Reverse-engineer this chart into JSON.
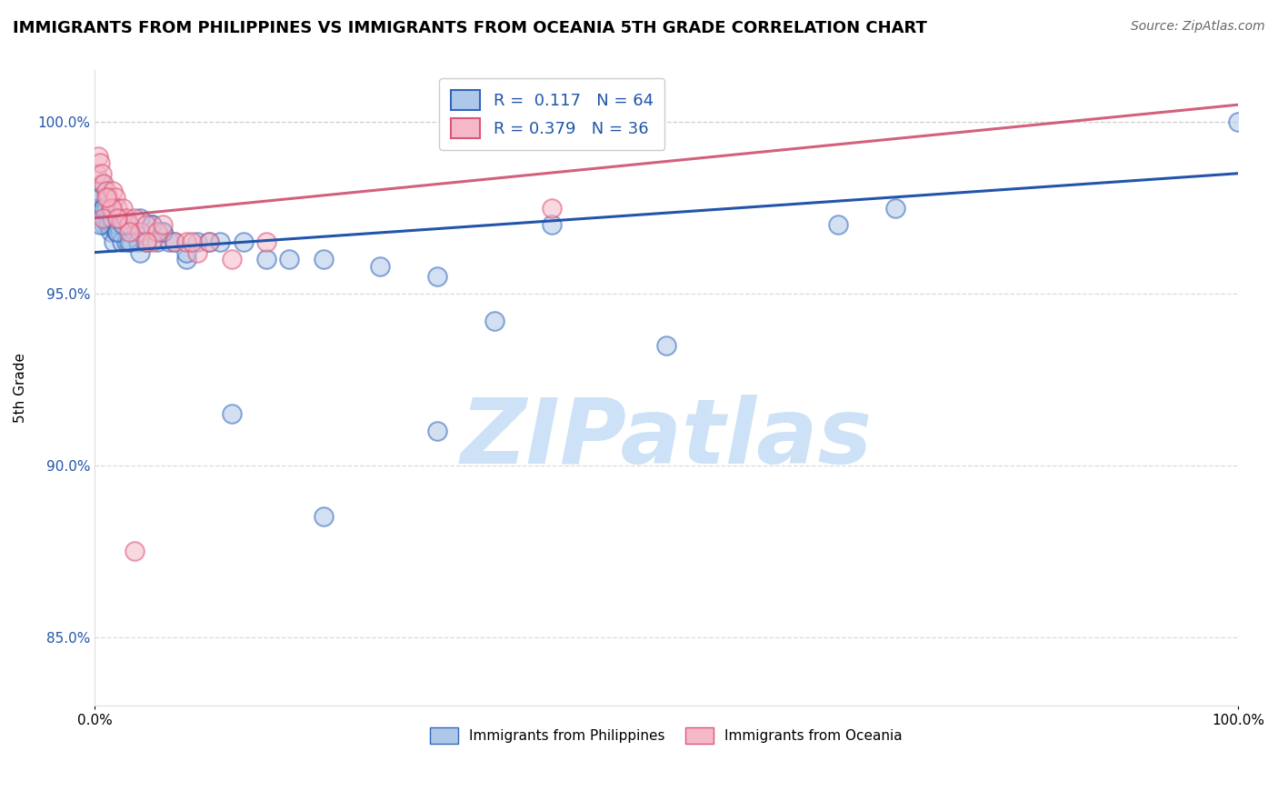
{
  "title": "IMMIGRANTS FROM PHILIPPINES VS IMMIGRANTS FROM OCEANIA 5TH GRADE CORRELATION CHART",
  "source": "Source: ZipAtlas.com",
  "ylabel": "5th Grade",
  "xlim": [
    0.0,
    100.0
  ],
  "ylim": [
    83.0,
    101.5
  ],
  "yticks": [
    85.0,
    90.0,
    95.0,
    100.0
  ],
  "R_blue": 0.117,
  "N_blue": 64,
  "R_pink": 0.379,
  "N_pink": 36,
  "blue_color": "#adc8e8",
  "blue_edge_color": "#3366bb",
  "blue_line_color": "#2255aa",
  "pink_color": "#f5b8c8",
  "pink_edge_color": "#dd5577",
  "pink_line_color": "#cc4466",
  "blue_scatter_x": [
    0.2,
    0.3,
    0.4,
    0.5,
    0.6,
    0.7,
    0.8,
    0.9,
    1.0,
    1.1,
    1.2,
    1.3,
    1.4,
    1.5,
    1.6,
    1.7,
    1.8,
    1.9,
    2.0,
    2.1,
    2.2,
    2.4,
    2.6,
    2.8,
    3.0,
    3.2,
    3.5,
    3.8,
    4.0,
    4.5,
    5.0,
    5.5,
    6.0,
    6.5,
    7.0,
    8.0,
    9.0,
    10.0,
    11.0,
    13.0,
    15.0,
    17.0,
    20.0,
    25.0,
    30.0,
    35.0,
    50.0,
    65.0,
    70.0,
    100.0,
    0.5,
    0.8,
    1.5,
    2.0,
    2.5,
    3.0,
    4.0,
    5.0,
    6.0,
    8.0,
    12.0,
    20.0,
    30.0,
    40.0
  ],
  "blue_scatter_y": [
    97.8,
    98.0,
    97.5,
    97.8,
    98.2,
    97.5,
    97.0,
    97.2,
    97.5,
    97.0,
    97.2,
    97.0,
    96.8,
    97.5,
    97.0,
    96.5,
    97.0,
    96.8,
    97.2,
    97.0,
    96.8,
    96.5,
    97.0,
    96.5,
    97.0,
    96.5,
    96.8,
    96.5,
    96.2,
    96.5,
    97.0,
    96.5,
    96.8,
    96.5,
    96.5,
    96.0,
    96.5,
    96.5,
    96.5,
    96.5,
    96.0,
    96.0,
    96.0,
    95.8,
    95.5,
    94.2,
    93.5,
    97.0,
    97.5,
    100.0,
    97.0,
    97.5,
    97.2,
    96.8,
    97.0,
    96.5,
    97.2,
    97.0,
    96.8,
    96.2,
    91.5,
    88.5,
    91.0,
    97.0
  ],
  "pink_scatter_x": [
    0.2,
    0.3,
    0.5,
    0.6,
    0.8,
    1.0,
    1.2,
    1.4,
    1.6,
    1.8,
    2.0,
    2.2,
    2.5,
    2.8,
    3.0,
    3.5,
    4.0,
    4.5,
    5.0,
    5.5,
    6.0,
    7.0,
    8.0,
    9.0,
    10.0,
    12.0,
    15.0,
    4.5,
    1.5,
    3.0,
    0.7,
    1.0,
    2.0,
    8.5,
    40.0,
    3.5
  ],
  "pink_scatter_y": [
    98.5,
    99.0,
    98.8,
    98.5,
    98.2,
    98.0,
    97.8,
    97.5,
    98.0,
    97.8,
    97.5,
    97.2,
    97.5,
    97.2,
    97.0,
    97.2,
    96.8,
    97.0,
    96.5,
    96.8,
    97.0,
    96.5,
    96.5,
    96.2,
    96.5,
    96.0,
    96.5,
    96.5,
    97.5,
    96.8,
    97.2,
    97.8,
    97.2,
    96.5,
    97.5,
    87.5
  ],
  "blue_trendline_x0": 0.0,
  "blue_trendline_x1": 100.0,
  "blue_trendline_y0": 96.2,
  "blue_trendline_y1": 98.5,
  "pink_trendline_x0": 0.0,
  "pink_trendline_x1": 100.0,
  "pink_trendline_y0": 97.2,
  "pink_trendline_y1": 100.5,
  "watermark_text": "ZIPatlas",
  "watermark_color": "#c8dff5",
  "legend_fontsize": 13,
  "title_fontsize": 13,
  "axis_label_fontsize": 11,
  "tick_label_fontsize": 11,
  "tick_color": "#2255aa"
}
